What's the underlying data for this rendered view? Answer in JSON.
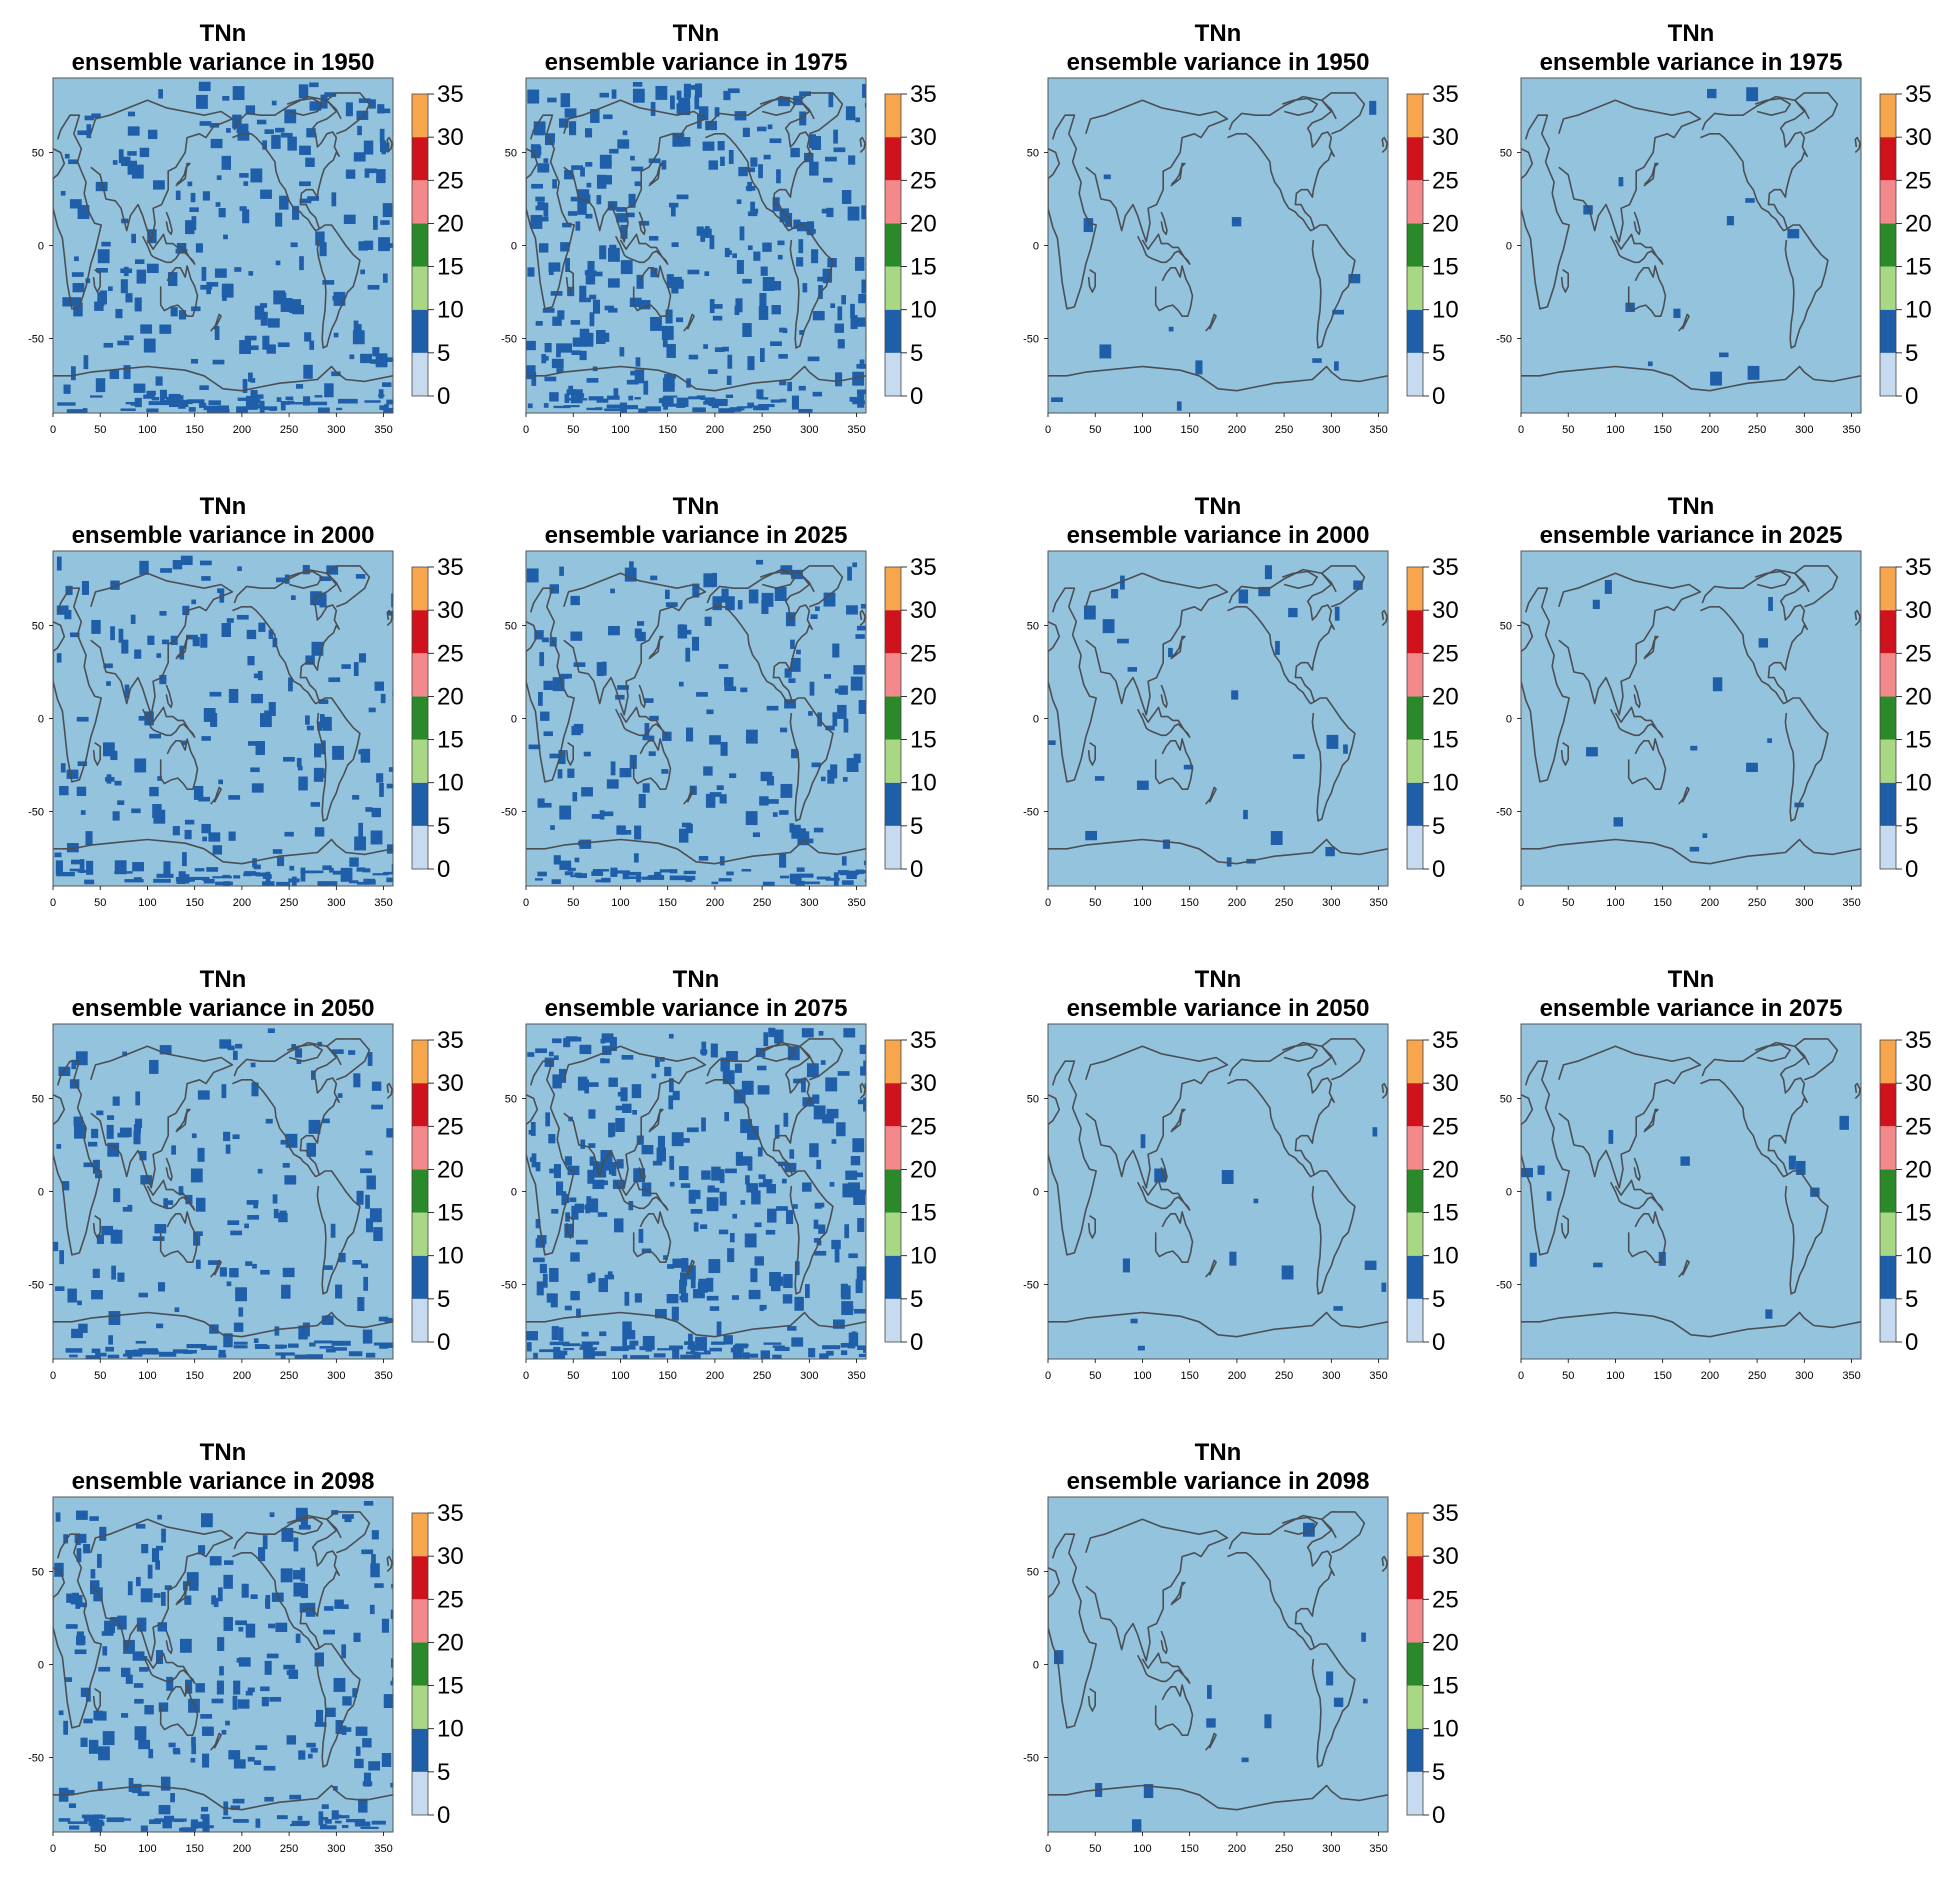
{
  "colors": {
    "background_class": "#94c3de",
    "scale": [
      "#c6dbef",
      "#1f5ea8",
      "#a8d883",
      "#2a8a2a",
      "#f4898b",
      "#d0121c",
      "#f7a64d"
    ],
    "coastline": "#4a4f55"
  },
  "chart_data": [
    {
      "type": "heatmap",
      "title": "TNn",
      "subtitle": "ensemble variance in 1950",
      "density": 0.09,
      "xticks": [
        "0",
        "50",
        "100",
        "150",
        "200",
        "250",
        "300",
        "350"
      ],
      "yticks": [
        "50",
        "0",
        "-50"
      ],
      "xlim": [
        0,
        360
      ],
      "ylim": [
        -90,
        90
      ],
      "colorbar": {
        "ticks": [
          "35",
          "30",
          "25",
          "20",
          "15",
          "10",
          "5",
          "0"
        ],
        "breaks": [
          0,
          5,
          10,
          15,
          20,
          25,
          30,
          35
        ]
      }
    },
    {
      "type": "heatmap",
      "title": "TNn",
      "subtitle": "ensemble variance in 1975",
      "density": 0.12,
      "xticks": [
        "0",
        "50",
        "100",
        "150",
        "200",
        "250",
        "300",
        "350"
      ],
      "yticks": [
        "50",
        "0",
        "-50"
      ],
      "xlim": [
        0,
        360
      ],
      "ylim": [
        -90,
        90
      ],
      "colorbar": {
        "ticks": [
          "35",
          "30",
          "25",
          "20",
          "15",
          "10",
          "5",
          "0"
        ],
        "breaks": [
          0,
          5,
          10,
          15,
          20,
          25,
          30,
          35
        ]
      }
    },
    {
      "type": "heatmap",
      "title": "TNn",
      "subtitle": "ensemble variance in 1950",
      "density": 0.005,
      "xticks": [
        "0",
        "50",
        "100",
        "150",
        "200",
        "250",
        "300",
        "350"
      ],
      "yticks": [
        "50",
        "0",
        "-50"
      ],
      "xlim": [
        0,
        360
      ],
      "ylim": [
        -90,
        90
      ],
      "colorbar": {
        "ticks": [
          "35",
          "30",
          "25",
          "20",
          "15",
          "10",
          "5",
          "0"
        ],
        "breaks": [
          0,
          5,
          10,
          15,
          20,
          25,
          30,
          35
        ]
      }
    },
    {
      "type": "heatmap",
      "title": "TNn",
      "subtitle": "ensemble variance in 1975",
      "density": 0.005,
      "xticks": [
        "0",
        "50",
        "100",
        "150",
        "200",
        "250",
        "300",
        "350"
      ],
      "yticks": [
        "50",
        "0",
        "-50"
      ],
      "xlim": [
        0,
        360
      ],
      "ylim": [
        -90,
        90
      ],
      "colorbar": {
        "ticks": [
          "35",
          "30",
          "25",
          "20",
          "15",
          "10",
          "5",
          "0"
        ],
        "breaks": [
          0,
          5,
          10,
          15,
          20,
          25,
          30,
          35
        ]
      }
    },
    {
      "type": "heatmap",
      "title": "TNn",
      "subtitle": "ensemble variance in 2000",
      "density": 0.07,
      "xticks": [
        "0",
        "50",
        "100",
        "150",
        "200",
        "250",
        "300",
        "350"
      ],
      "yticks": [
        "50",
        "0",
        "-50"
      ],
      "xlim": [
        0,
        360
      ],
      "ylim": [
        -90,
        90
      ],
      "colorbar": {
        "ticks": [
          "35",
          "30",
          "25",
          "20",
          "15",
          "10",
          "5",
          "0"
        ],
        "breaks": [
          0,
          5,
          10,
          15,
          20,
          25,
          30,
          35
        ]
      }
    },
    {
      "type": "heatmap",
      "title": "TNn",
      "subtitle": "ensemble variance in 2025",
      "density": 0.07,
      "xticks": [
        "0",
        "50",
        "100",
        "150",
        "200",
        "250",
        "300",
        "350"
      ],
      "yticks": [
        "50",
        "0",
        "-50"
      ],
      "xlim": [
        0,
        360
      ],
      "ylim": [
        -90,
        90
      ],
      "colorbar": {
        "ticks": [
          "35",
          "30",
          "25",
          "20",
          "15",
          "10",
          "5",
          "0"
        ],
        "breaks": [
          0,
          5,
          10,
          15,
          20,
          25,
          30,
          35
        ]
      }
    },
    {
      "type": "heatmap",
      "title": "TNn",
      "subtitle": "ensemble variance in 2000",
      "density": 0.012,
      "xticks": [
        "0",
        "50",
        "100",
        "150",
        "200",
        "250",
        "300",
        "350"
      ],
      "yticks": [
        "50",
        "0",
        "-50"
      ],
      "xlim": [
        0,
        360
      ],
      "ylim": [
        -90,
        90
      ],
      "colorbar": {
        "ticks": [
          "35",
          "30",
          "25",
          "20",
          "15",
          "10",
          "5",
          "0"
        ],
        "breaks": [
          0,
          5,
          10,
          15,
          20,
          25,
          30,
          35
        ]
      }
    },
    {
      "type": "heatmap",
      "title": "TNn",
      "subtitle": "ensemble variance in 2025",
      "density": 0.005,
      "xticks": [
        "0",
        "50",
        "100",
        "150",
        "200",
        "250",
        "300",
        "350"
      ],
      "yticks": [
        "50",
        "0",
        "-50"
      ],
      "xlim": [
        0,
        360
      ],
      "ylim": [
        -90,
        90
      ],
      "colorbar": {
        "ticks": [
          "35",
          "30",
          "25",
          "20",
          "15",
          "10",
          "5",
          "0"
        ],
        "breaks": [
          0,
          5,
          10,
          15,
          20,
          25,
          30,
          35
        ]
      }
    },
    {
      "type": "heatmap",
      "title": "TNn",
      "subtitle": "ensemble variance in 2050",
      "density": 0.06,
      "xticks": [
        "0",
        "50",
        "100",
        "150",
        "200",
        "250",
        "300",
        "350"
      ],
      "yticks": [
        "50",
        "0",
        "-50"
      ],
      "xlim": [
        0,
        360
      ],
      "ylim": [
        -90,
        90
      ],
      "colorbar": {
        "ticks": [
          "35",
          "30",
          "25",
          "20",
          "15",
          "10",
          "5",
          "0"
        ],
        "breaks": [
          0,
          5,
          10,
          15,
          20,
          25,
          30,
          35
        ]
      }
    },
    {
      "type": "heatmap",
      "title": "TNn",
      "subtitle": "ensemble variance in 2075",
      "density": 0.12,
      "xticks": [
        "0",
        "50",
        "100",
        "150",
        "200",
        "250",
        "300",
        "350"
      ],
      "yticks": [
        "50",
        "0",
        "-50"
      ],
      "xlim": [
        0,
        360
      ],
      "ylim": [
        -90,
        90
      ],
      "colorbar": {
        "ticks": [
          "35",
          "30",
          "25",
          "20",
          "15",
          "10",
          "5",
          "0"
        ],
        "breaks": [
          0,
          5,
          10,
          15,
          20,
          25,
          30,
          35
        ]
      }
    },
    {
      "type": "heatmap",
      "title": "TNn",
      "subtitle": "ensemble variance in 2050",
      "density": 0.005,
      "xticks": [
        "0",
        "50",
        "100",
        "150",
        "200",
        "250",
        "300",
        "350"
      ],
      "yticks": [
        "50",
        "0",
        "-50"
      ],
      "xlim": [
        0,
        360
      ],
      "ylim": [
        -90,
        90
      ],
      "colorbar": {
        "ticks": [
          "35",
          "30",
          "25",
          "20",
          "15",
          "10",
          "5",
          "0"
        ],
        "breaks": [
          0,
          5,
          10,
          15,
          20,
          25,
          30,
          35
        ]
      }
    },
    {
      "type": "heatmap",
      "title": "TNn",
      "subtitle": "ensemble variance in 2075",
      "density": 0.005,
      "xticks": [
        "0",
        "50",
        "100",
        "150",
        "200",
        "250",
        "300",
        "350"
      ],
      "yticks": [
        "50",
        "0",
        "-50"
      ],
      "xlim": [
        0,
        360
      ],
      "ylim": [
        -90,
        90
      ],
      "colorbar": {
        "ticks": [
          "35",
          "30",
          "25",
          "20",
          "15",
          "10",
          "5",
          "0"
        ],
        "breaks": [
          0,
          5,
          10,
          15,
          20,
          25,
          30,
          35
        ]
      }
    },
    {
      "type": "heatmap",
      "title": "TNn",
      "subtitle": "ensemble variance in 2098",
      "density": 0.09,
      "xticks": [
        "0",
        "50",
        "100",
        "150",
        "200",
        "250",
        "300",
        "350"
      ],
      "yticks": [
        "50",
        "0",
        "-50"
      ],
      "xlim": [
        0,
        360
      ],
      "ylim": [
        -90,
        90
      ],
      "colorbar": {
        "ticks": [
          "35",
          "30",
          "25",
          "20",
          "15",
          "10",
          "5",
          "0"
        ],
        "breaks": [
          0,
          5,
          10,
          15,
          20,
          25,
          30,
          35
        ]
      }
    },
    {
      "type": "heatmap",
      "title": "TNn",
      "subtitle": "ensemble variance in 2098",
      "density": 0.005,
      "xticks": [
        "0",
        "50",
        "100",
        "150",
        "200",
        "250",
        "300",
        "350"
      ],
      "yticks": [
        "50",
        "0",
        "-50"
      ],
      "xlim": [
        0,
        360
      ],
      "ylim": [
        -90,
        90
      ],
      "colorbar": {
        "ticks": [
          "35",
          "30",
          "25",
          "20",
          "15",
          "10",
          "5",
          "0"
        ],
        "breaks": [
          0,
          5,
          10,
          15,
          20,
          25,
          30,
          35
        ]
      }
    }
  ]
}
